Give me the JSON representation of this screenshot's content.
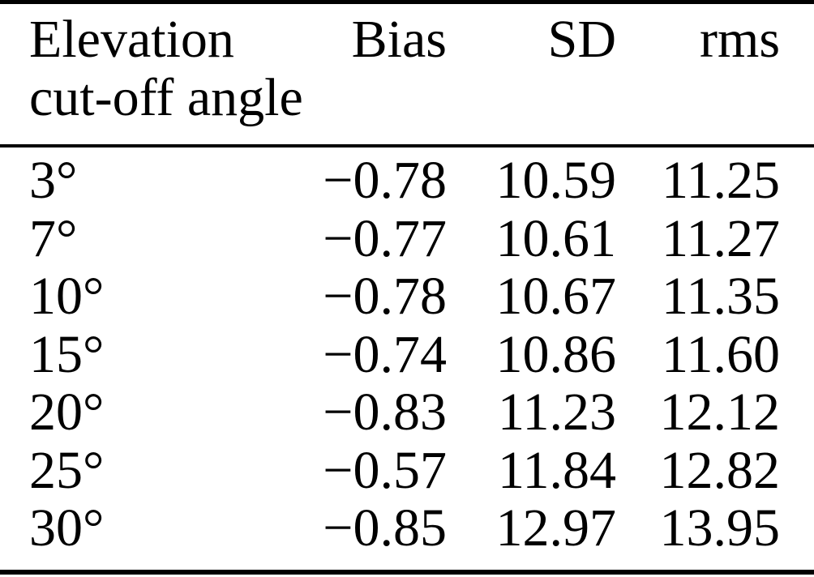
{
  "figure": {
    "description": "Statistics table versus elevation cut-off angle",
    "colors": {
      "background": "#ffffff",
      "text": "#000000",
      "rule": "#000000"
    },
    "header": {
      "col1_line1": "Elevation",
      "col1_line2": "cut-off angle",
      "col2": "Bias",
      "col3": "SD",
      "col4": "rms"
    },
    "rows": [
      {
        "angle": "3°",
        "bias": "−0.78",
        "sd": "10.59",
        "rms": "11.25"
      },
      {
        "angle": "7°",
        "bias": "−0.77",
        "sd": "10.61",
        "rms": "11.27"
      },
      {
        "angle": "10°",
        "bias": "−0.78",
        "sd": "10.67",
        "rms": "11.35"
      },
      {
        "angle": "15°",
        "bias": "−0.74",
        "sd": "10.86",
        "rms": "11.60"
      },
      {
        "angle": "20°",
        "bias": "−0.83",
        "sd": "11.23",
        "rms": "12.12"
      },
      {
        "angle": "25°",
        "bias": "−0.57",
        "sd": "11.84",
        "rms": "12.82"
      },
      {
        "angle": "30°",
        "bias": "−0.85",
        "sd": "12.97",
        "rms": "13.95"
      }
    ]
  },
  "chart_data": {
    "type": "table",
    "columns": [
      "Elevation cut-off angle",
      "Bias",
      "SD",
      "rms"
    ],
    "rows": [
      [
        "3°",
        -0.78,
        10.59,
        11.25
      ],
      [
        "7°",
        -0.77,
        10.61,
        11.27
      ],
      [
        "10°",
        -0.78,
        10.67,
        11.35
      ],
      [
        "15°",
        -0.74,
        10.86,
        11.6
      ],
      [
        "20°",
        -0.83,
        11.23,
        12.12
      ],
      [
        "25°",
        -0.57,
        11.84,
        12.82
      ],
      [
        "30°",
        -0.85,
        12.97,
        13.95
      ]
    ]
  }
}
